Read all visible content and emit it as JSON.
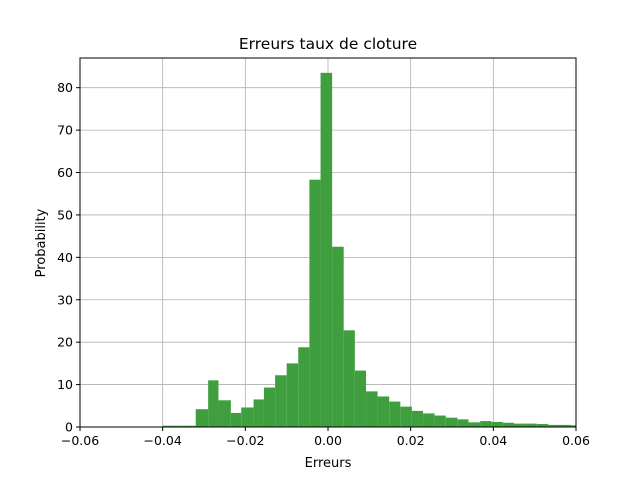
{
  "chart_data": {
    "type": "bar",
    "title": "Erreurs taux de cloture",
    "xlabel": "Erreurs",
    "ylabel": "Probability",
    "xlim": [
      -0.06,
      0.06
    ],
    "ylim": [
      0,
      87
    ],
    "grid": true,
    "bar_color": "#3f9f3f",
    "x_ticks": [
      {
        "value": -0.06,
        "label": "−0.06"
      },
      {
        "value": -0.04,
        "label": "−0.04"
      },
      {
        "value": -0.02,
        "label": "−0.02"
      },
      {
        "value": 0.0,
        "label": "0.00"
      },
      {
        "value": 0.02,
        "label": "0.02"
      },
      {
        "value": 0.04,
        "label": "0.04"
      },
      {
        "value": 0.06,
        "label": "0.06"
      }
    ],
    "y_ticks": [
      {
        "value": 0,
        "label": "0"
      },
      {
        "value": 10,
        "label": "10"
      },
      {
        "value": 20,
        "label": "20"
      },
      {
        "value": 30,
        "label": "30"
      },
      {
        "value": 40,
        "label": "40"
      },
      {
        "value": 50,
        "label": "50"
      },
      {
        "value": 60,
        "label": "60"
      },
      {
        "value": 70,
        "label": "70"
      },
      {
        "value": 80,
        "label": "80"
      }
    ],
    "bins": [
      {
        "x0": -0.04,
        "x1": -0.036,
        "y": 0.3
      },
      {
        "x0": -0.036,
        "x1": -0.032,
        "y": 0.3
      },
      {
        "x0": -0.032,
        "x1": -0.029,
        "y": 4.2
      },
      {
        "x0": -0.029,
        "x1": -0.0265,
        "y": 11.0
      },
      {
        "x0": -0.0265,
        "x1": -0.0235,
        "y": 6.3
      },
      {
        "x0": -0.0235,
        "x1": -0.021,
        "y": 3.3
      },
      {
        "x0": -0.021,
        "x1": -0.018,
        "y": 4.6
      },
      {
        "x0": -0.018,
        "x1": -0.0155,
        "y": 6.5
      },
      {
        "x0": -0.0155,
        "x1": -0.0128,
        "y": 9.3
      },
      {
        "x0": -0.0128,
        "x1": -0.01,
        "y": 12.2
      },
      {
        "x0": -0.01,
        "x1": -0.0072,
        "y": 15.0
      },
      {
        "x0": -0.0072,
        "x1": -0.0045,
        "y": 18.8
      },
      {
        "x0": -0.0045,
        "x1": -0.0018,
        "y": 58.3
      },
      {
        "x0": -0.0018,
        "x1": 0.001,
        "y": 83.5
      },
      {
        "x0": 0.001,
        "x1": 0.0038,
        "y": 42.5
      },
      {
        "x0": 0.0038,
        "x1": 0.0065,
        "y": 22.8
      },
      {
        "x0": 0.0065,
        "x1": 0.0092,
        "y": 13.3
      },
      {
        "x0": 0.0092,
        "x1": 0.012,
        "y": 8.4
      },
      {
        "x0": 0.012,
        "x1": 0.0148,
        "y": 7.2
      },
      {
        "x0": 0.0148,
        "x1": 0.0175,
        "y": 6.0
      },
      {
        "x0": 0.0175,
        "x1": 0.0203,
        "y": 4.8
      },
      {
        "x0": 0.0203,
        "x1": 0.023,
        "y": 3.8
      },
      {
        "x0": 0.023,
        "x1": 0.0258,
        "y": 3.2
      },
      {
        "x0": 0.0258,
        "x1": 0.0285,
        "y": 2.7
      },
      {
        "x0": 0.0285,
        "x1": 0.0313,
        "y": 2.2
      },
      {
        "x0": 0.0313,
        "x1": 0.034,
        "y": 1.8
      },
      {
        "x0": 0.034,
        "x1": 0.0368,
        "y": 1.1
      },
      {
        "x0": 0.0368,
        "x1": 0.0395,
        "y": 1.4
      },
      {
        "x0": 0.0395,
        "x1": 0.0423,
        "y": 1.2
      },
      {
        "x0": 0.0423,
        "x1": 0.045,
        "y": 1.0
      },
      {
        "x0": 0.045,
        "x1": 0.0478,
        "y": 0.8
      },
      {
        "x0": 0.0478,
        "x1": 0.0505,
        "y": 0.8
      },
      {
        "x0": 0.0505,
        "x1": 0.0533,
        "y": 0.7
      },
      {
        "x0": 0.0533,
        "x1": 0.056,
        "y": 0.5
      },
      {
        "x0": 0.056,
        "x1": 0.0588,
        "y": 0.5
      },
      {
        "x0": 0.0588,
        "x1": 0.06,
        "y": 0.4
      }
    ]
  }
}
